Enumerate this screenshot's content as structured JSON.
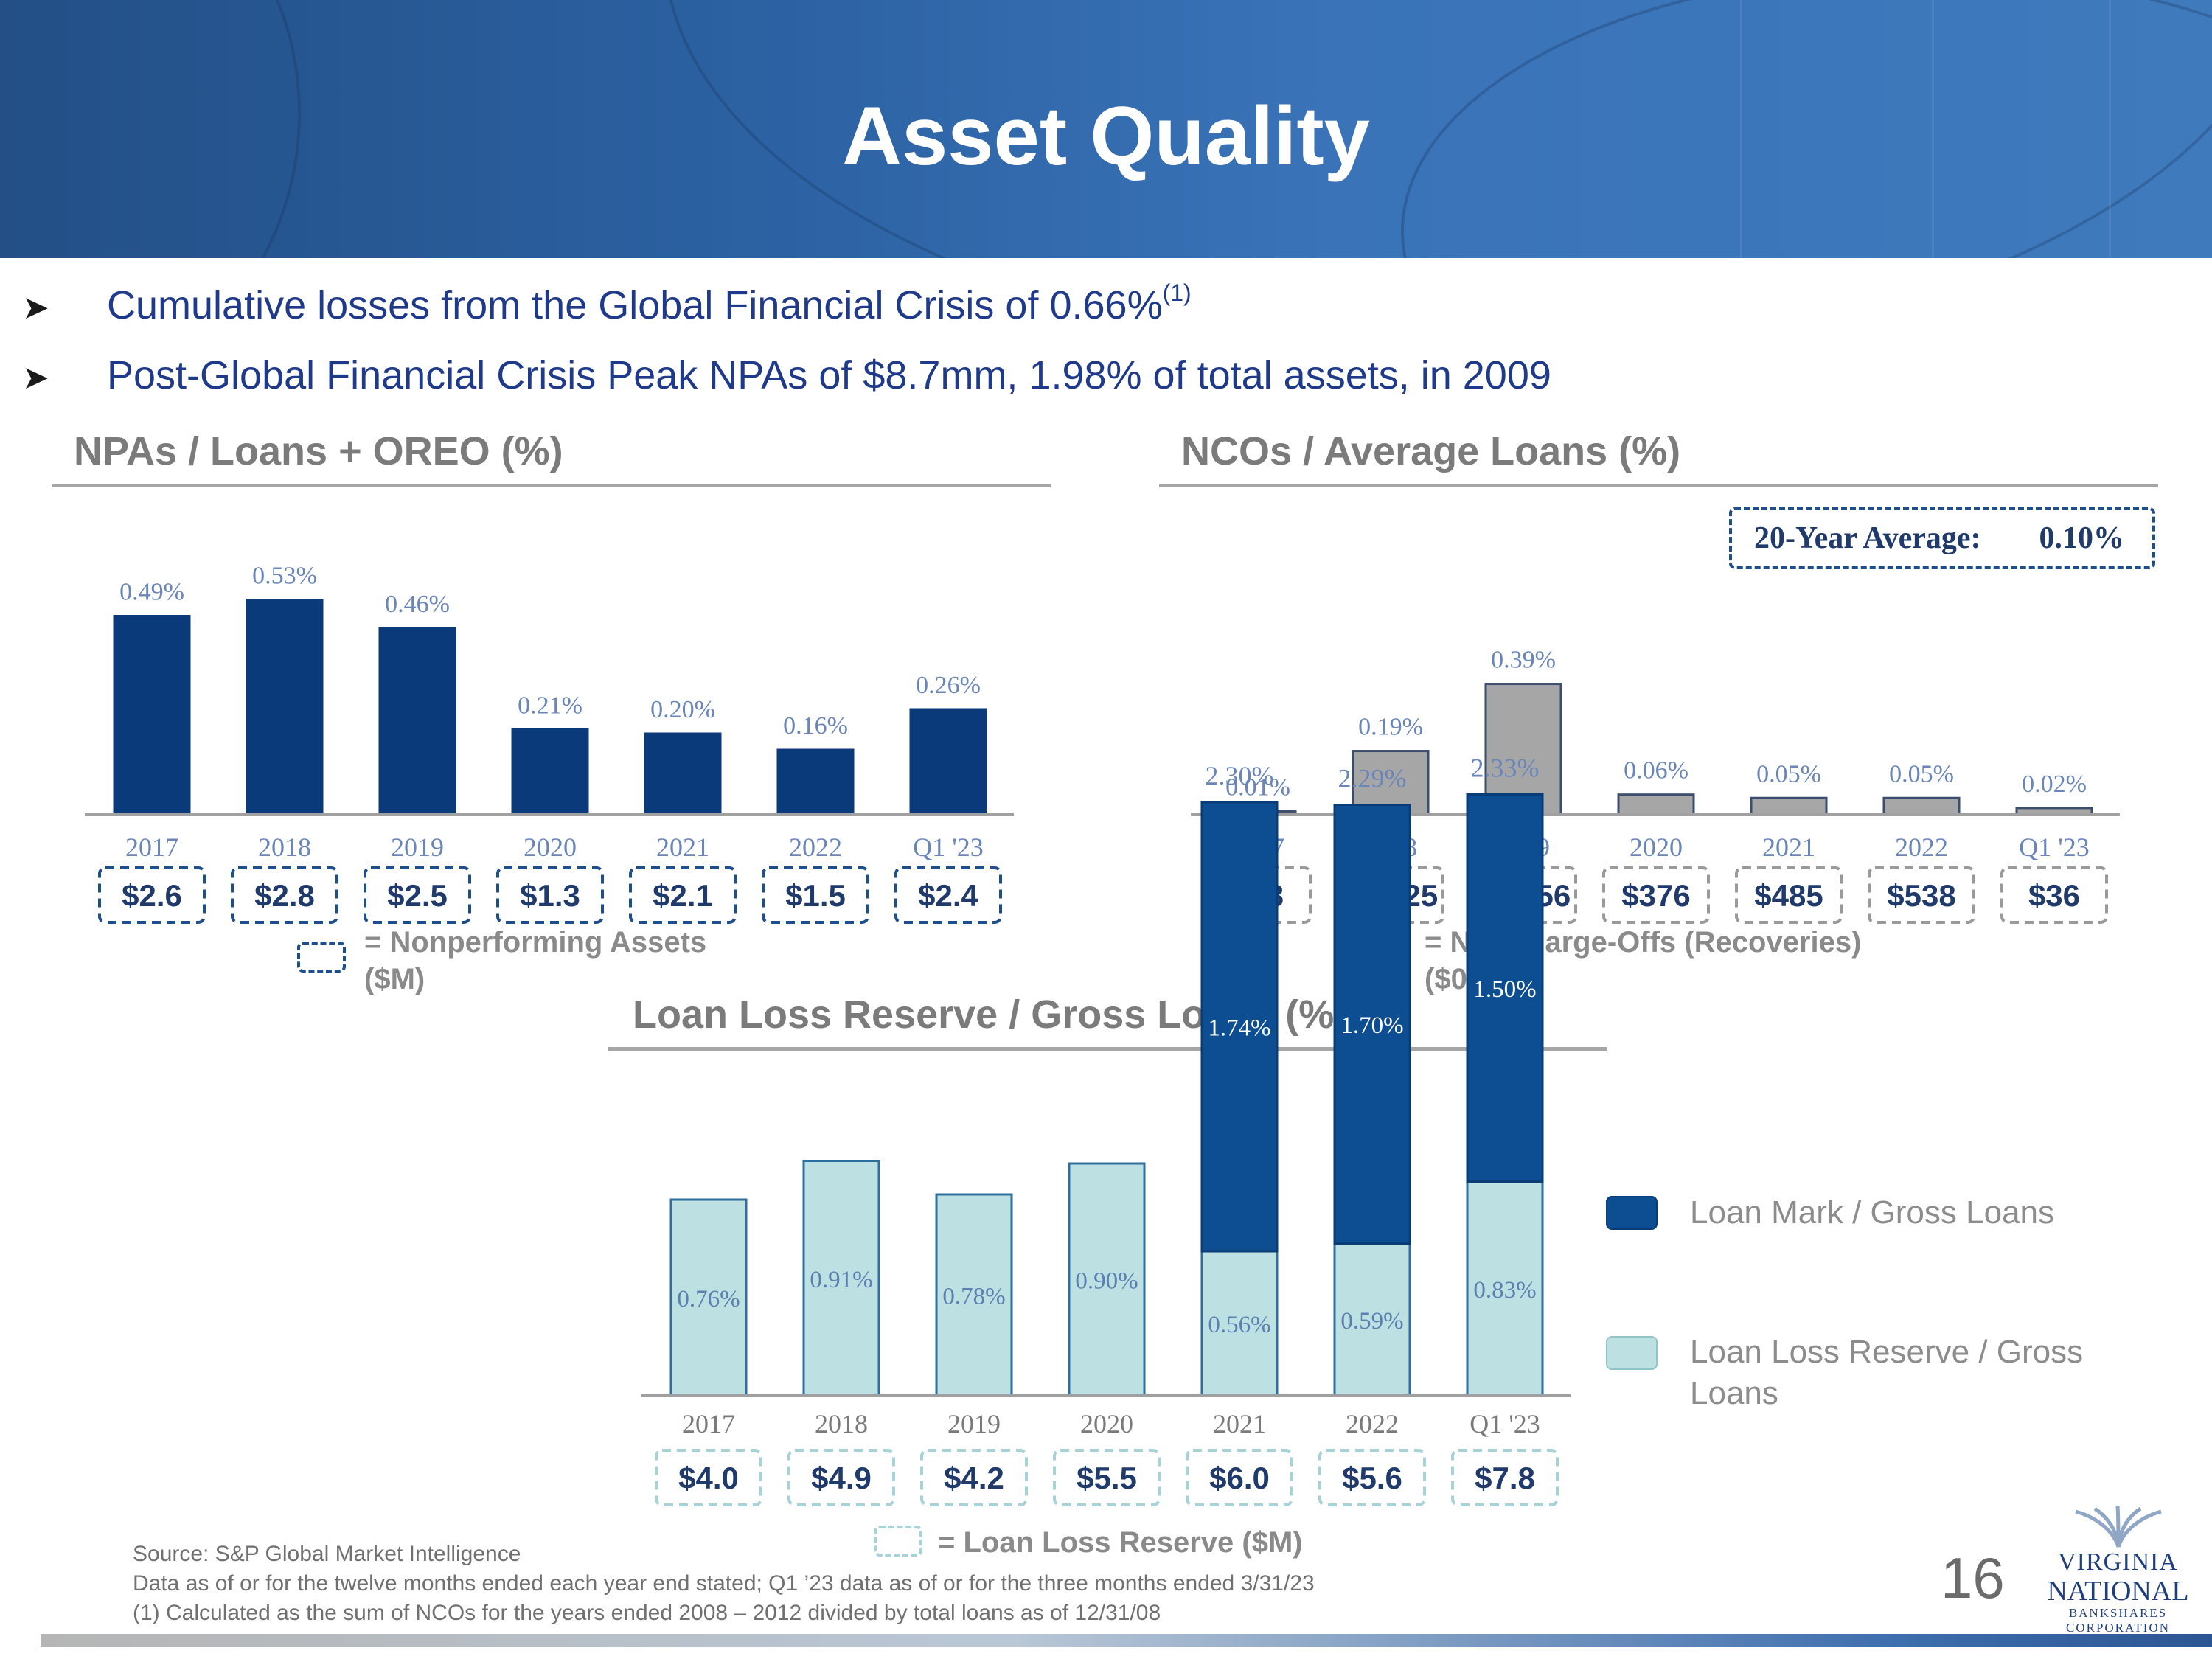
{
  "title": "Asset Quality",
  "bullets": [
    {
      "text": "Cumulative losses from the Global Financial Crisis of 0.66%",
      "footnote": "(1)"
    },
    {
      "text": "Post-Global Financial Crisis Peak NPAs of $8.7mm, 1.98% of total assets, in 2009",
      "footnote": ""
    }
  ],
  "colors": {
    "navy": "#0b3a7a",
    "gray_bar": "#a6a6a6",
    "mark_blue": "#0d4d92",
    "reserve_teal": "#bde1e3",
    "title_blue": "#1f3a8a"
  },
  "chart_data": [
    {
      "type": "bar",
      "title": "NPAs / Loans + OREO (%)",
      "categories": [
        "2017",
        "2018",
        "2019",
        "2020",
        "2021",
        "2022",
        "Q1 '23"
      ],
      "values": [
        0.49,
        0.53,
        0.46,
        0.21,
        0.2,
        0.16,
        0.26
      ],
      "value_labels": [
        "0.49%",
        "0.53%",
        "0.46%",
        "0.21%",
        "0.20%",
        "0.16%",
        "0.26%"
      ],
      "box_values": [
        "$2.6",
        "$2.8",
        "$2.5",
        "$1.3",
        "$2.1",
        "$1.5",
        "$2.4"
      ],
      "legend": {
        "line1": "= Nonperforming Assets",
        "line2": "($M)"
      },
      "color": "#0b3a7a"
    },
    {
      "type": "bar",
      "title": "NCOs / Average Loans (%)",
      "categories": [
        "2017",
        "2018",
        "2019",
        "2020",
        "2021",
        "2022",
        "Q1 '23"
      ],
      "values": [
        0.01,
        0.19,
        0.39,
        0.06,
        0.05,
        0.05,
        0.02
      ],
      "value_labels": [
        "0.01%",
        "0.19%",
        "0.39%",
        "0.06%",
        "0.05%",
        "0.05%",
        "0.02%"
      ],
      "box_values": [
        "$48",
        "$1,025",
        "$2,056",
        "$376",
        "$485",
        "$538",
        "$36"
      ],
      "legend": {
        "line1": "= Net Charge-Offs (Recoveries)",
        "line2": "($000)"
      },
      "average": {
        "label": "20-Year Average:",
        "value": "0.10%"
      },
      "color": "#a6a6a6"
    },
    {
      "type": "bar",
      "stacked": true,
      "title": "Loan Loss Reserve / Gross Loans (%)",
      "categories": [
        "2017",
        "2018",
        "2019",
        "2020",
        "2021",
        "2022",
        "Q1 '23"
      ],
      "series": [
        {
          "name": "Loan Loss Reserve / Gross Loans",
          "values": [
            0.76,
            0.91,
            0.78,
            0.9,
            0.56,
            0.59,
            0.83
          ],
          "labels": [
            "0.76%",
            "0.91%",
            "0.78%",
            "0.90%",
            "0.56%",
            "0.59%",
            "0.83%"
          ],
          "color": "#bde1e3"
        },
        {
          "name": "Loan Mark / Gross Loans",
          "values": [
            0,
            0,
            0,
            0,
            1.74,
            1.7,
            1.5
          ],
          "labels": [
            "",
            "",
            "",
            "",
            "1.74%",
            "1.70%",
            "1.50%"
          ],
          "color": "#0d4d92"
        }
      ],
      "totals": [
        null,
        null,
        null,
        null,
        2.3,
        2.29,
        2.33
      ],
      "total_labels": [
        "",
        "",
        "",
        "",
        "2.30%",
        "2.29%",
        "2.33%"
      ],
      "box_values": [
        "$4.0",
        "$4.9",
        "$4.2",
        "$5.5",
        "$6.0",
        "$5.6",
        "$7.8"
      ],
      "legend": {
        "line1": "= Loan Loss Reserve ($M)"
      }
    }
  ],
  "side_legend": [
    {
      "label": "Loan Mark / Gross Loans",
      "color": "#0d4d92"
    },
    {
      "label": "Loan Loss Reserve / Gross Loans",
      "color": "#bde1e3"
    }
  ],
  "footnotes": [
    "Source: S&P Global Market Intelligence",
    "Data as of or for the twelve months ended each year end stated; Q1 ’23 data as of or for the three months ended 3/31/23",
    "(1)    Calculated as the sum of NCOs for the years ended 2008 – 2012 divided by total loans as of 12/31/08"
  ],
  "page_number": "16",
  "logo": {
    "line1": "VIRGINIA",
    "line2": "NATIONAL",
    "line3": "BANKSHARES",
    "line4": "CORPORATION"
  }
}
